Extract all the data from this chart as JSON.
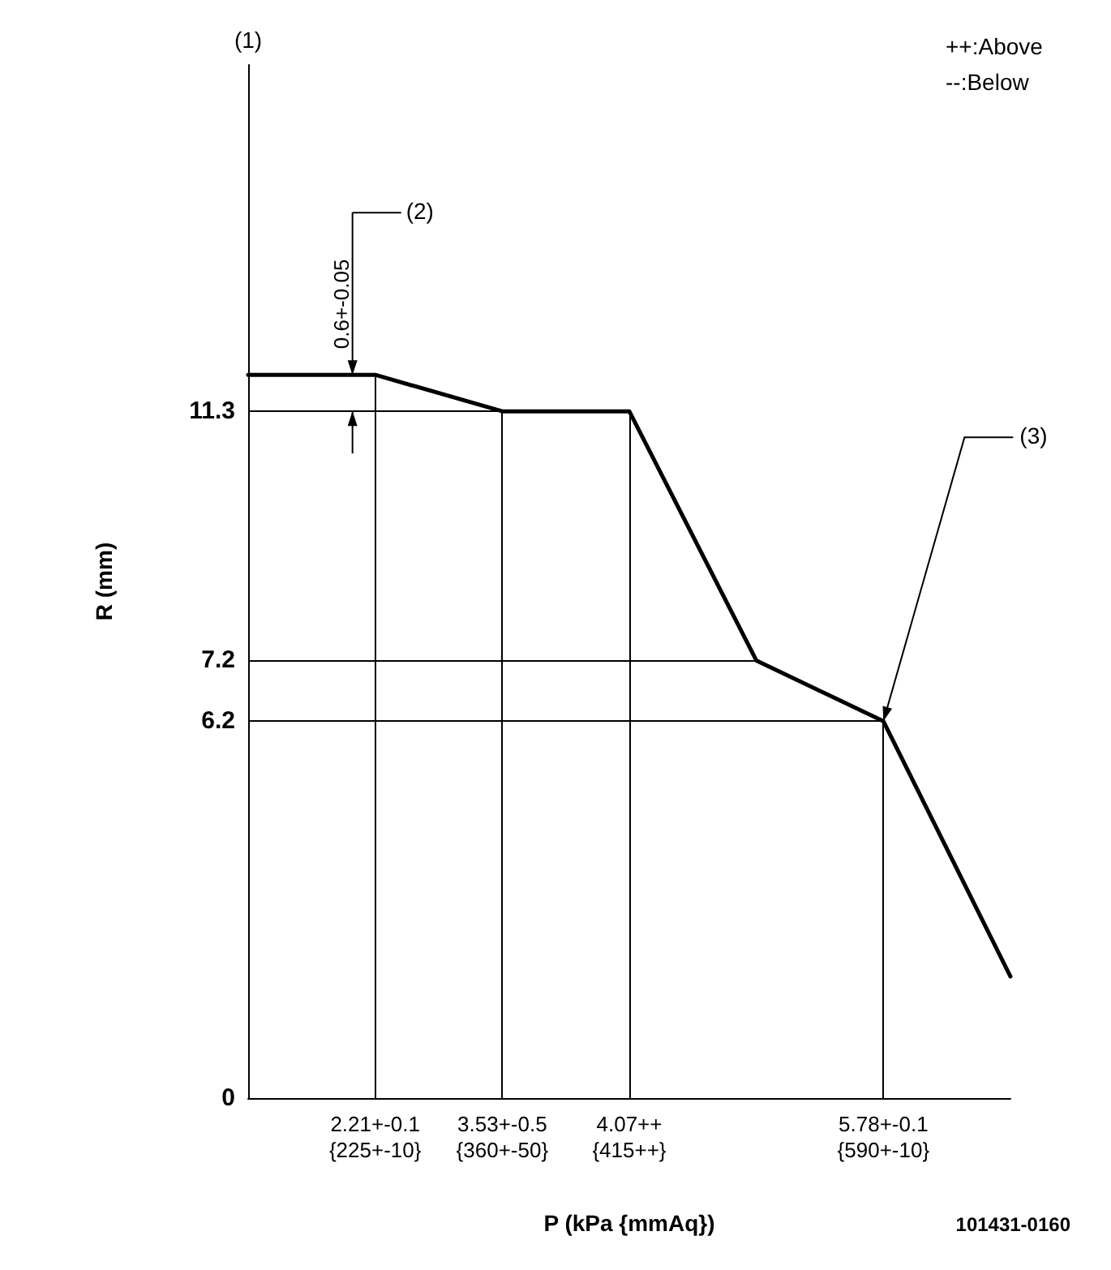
{
  "chart_data": {
    "type": "line",
    "xlabel": "P (kPa {mmAq})",
    "ylabel": "R (mm)",
    "categories": [
      null,
      "2.21+-0.1{225+-10}",
      "3.53+-0.5{360+-50}",
      "4.07++{415++}",
      null,
      "5.78+-0.1{590+-10}",
      null
    ],
    "series": [
      {
        "color": "#000000",
        "values": [
          11.9,
          11.9,
          11.3,
          11.3,
          7.2,
          6.2,
          2.0
        ]
      }
    ],
    "ylim": [
      0,
      17
    ],
    "yticks": [
      0,
      6.2,
      7.2,
      11.3
    ],
    "ref_lines": [
      {
        "axis": "y",
        "value": 11.3
      },
      {
        "axis": "y",
        "value": 7.2
      },
      {
        "axis": "y",
        "value": 6.2
      },
      {
        "axis": "x",
        "value": "2.21+-0.1{225+-10}"
      },
      {
        "axis": "x",
        "value": "3.53+-0.5{360+-50}"
      },
      {
        "axis": "x",
        "value": "4.07++{415++}"
      },
      {
        "axis": "x",
        "value": "5.78+-0.1{590+-10}"
      }
    ],
    "annotations": [
      "(1)",
      "(2)",
      {
        "text": "0.6+-0.05",
        "x": "2.21+-0.1{225+-10}",
        "y": 11.9
      },
      {
        "text": "(3)",
        "x": "5.78+-0.1{590+-10}",
        "y": 6.2
      },
      "++:Above",
      "--:Below",
      "101431-0160"
    ],
    "grid": false
  }
}
